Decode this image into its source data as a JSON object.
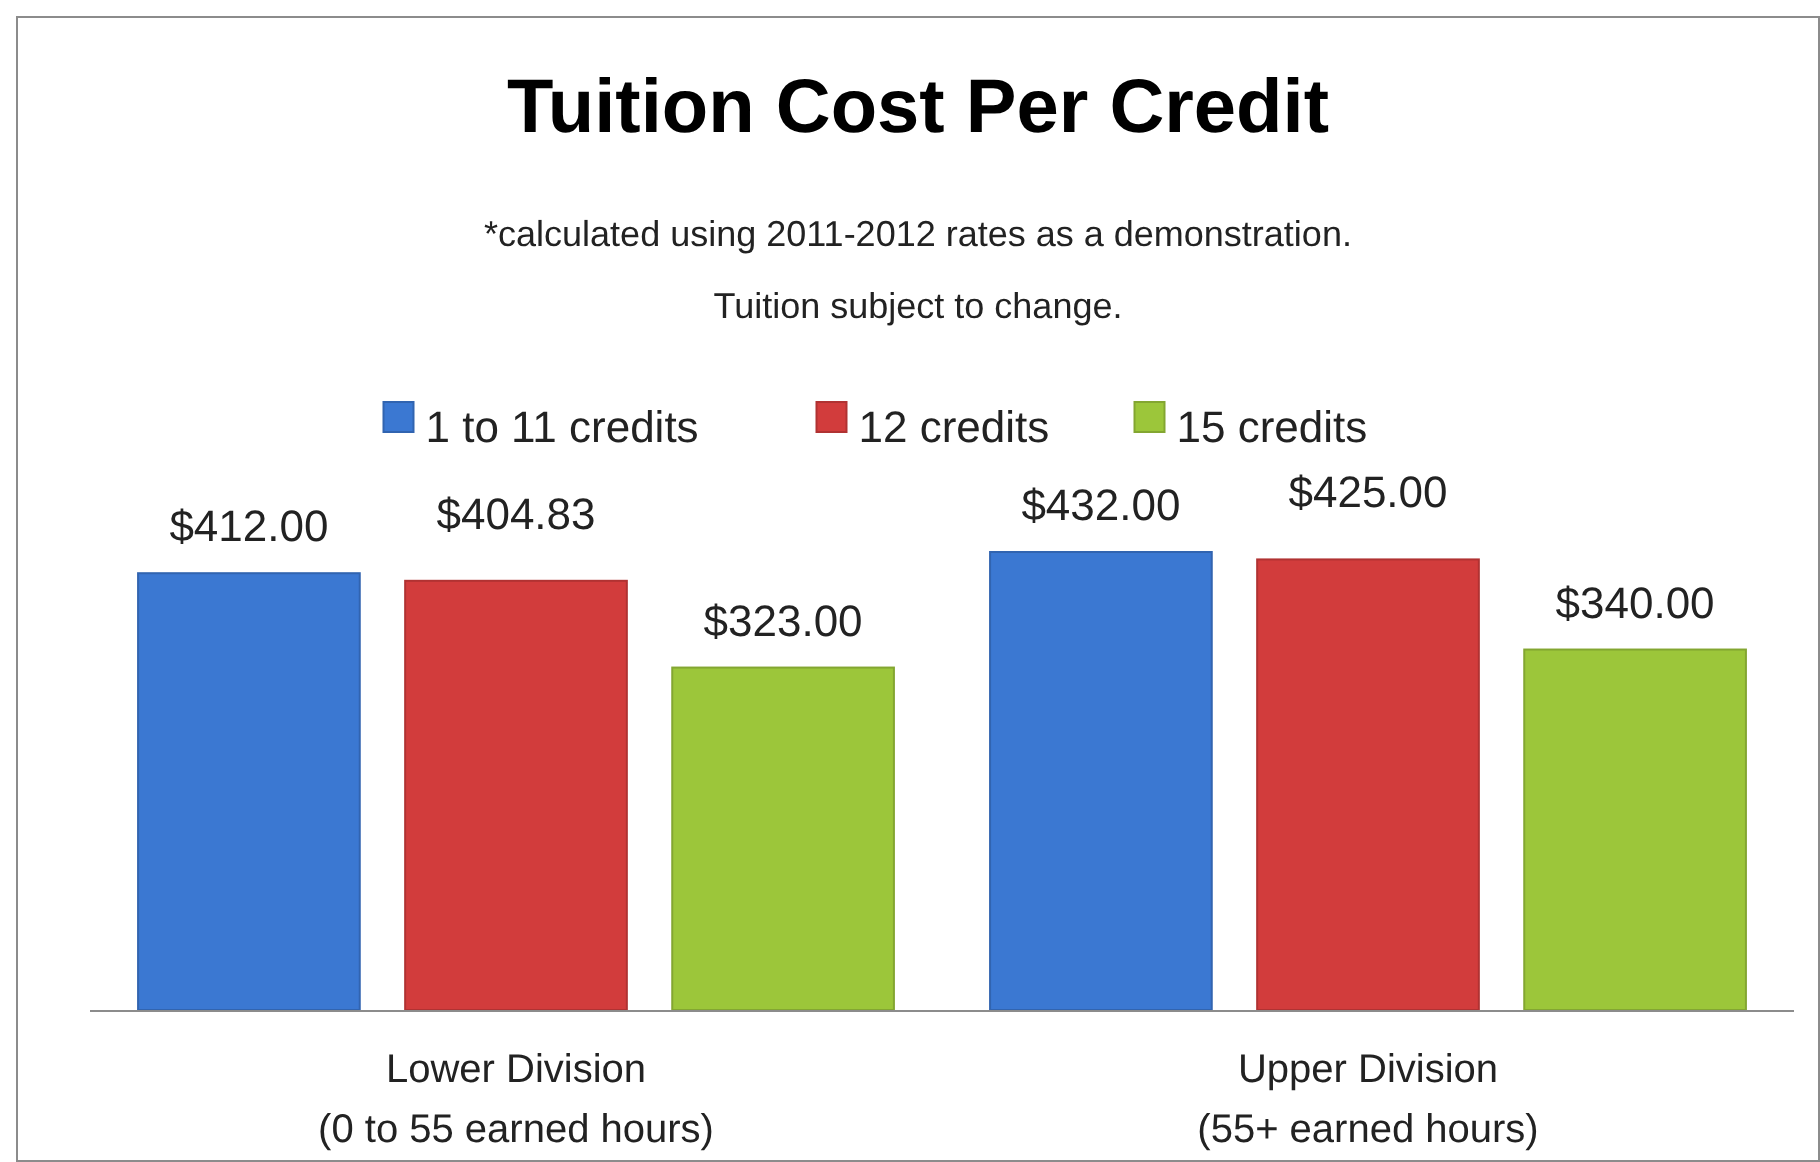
{
  "chart_data": {
    "type": "bar",
    "title": "Tuition Cost Per Credit",
    "subtitle": "*calculated using 2011-2012 rates as a demonstration.",
    "annotations": [
      "Tuition subject to change."
    ],
    "categories": [
      "Lower Division\n(0 to 55 earned hours)",
      "Upper Division\n(55+ earned hours)"
    ],
    "series": [
      {
        "name": "1 to 11 credits",
        "color": "#3b78d2",
        "values": [
          412,
          432
        ],
        "value_labels": [
          "$412.00",
          "$432.00"
        ]
      },
      {
        "name": "12 credits",
        "color": "#d23c3c",
        "values": [
          404.83,
          425
        ],
        "value_labels": [
          "$404.83",
          "$425.00"
        ]
      },
      {
        "name": "15 credits",
        "color": "#9cc63a",
        "values": [
          323,
          340
        ],
        "value_labels": [
          "$323.00",
          "$340.00"
        ]
      }
    ],
    "legend": "top"
  }
}
